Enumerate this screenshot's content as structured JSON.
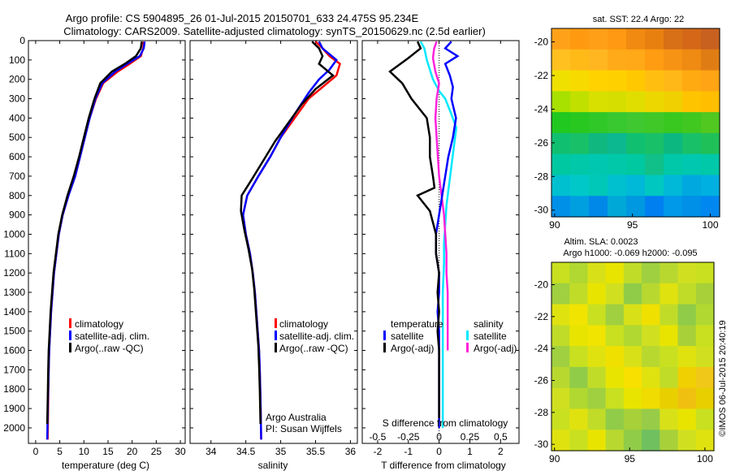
{
  "title_lines": [
    "Argo profile: CS 5904895_26 01-Jul-2015 20150701_633 24.475S 95.234E",
    "Climatology: CARS2009. Satellite-adjusted climatology: synTS_20150629.nc (2.5d earlier)"
  ],
  "credit": "Argo Australia",
  "pi": "PI: Susan Wijffels",
  "stamp": "©IMOS 06-Jul-2015 20:40:19",
  "legend_main": [
    {
      "label": "climatology",
      "color": "#ff0000"
    },
    {
      "label": "satellite-adj. clim.",
      "color": "#0000ff"
    },
    {
      "label": "Argo(..raw -QC)",
      "color": "#000000"
    }
  ],
  "legend_diff_headers": [
    "temperature",
    "salinity"
  ],
  "legend_diff_t": [
    {
      "label": "satellite",
      "color": "#0000ff"
    },
    {
      "label": "Argo(-adj)",
      "color": "#000000"
    }
  ],
  "legend_diff_s": [
    {
      "label": "satellite",
      "color": "#00e8ff"
    },
    {
      "label": "Argo(-adj)",
      "color": "#ff22dd"
    }
  ],
  "colors": {
    "climatology": "#ff0000",
    "satellite": "#0000ff",
    "argo": "#000000",
    "s_satellite": "#00e8ff",
    "s_argo": "#ff22dd"
  },
  "chart_data": [
    {
      "type": "line",
      "xlabel": "temperature (deg C)",
      "ylabel": "",
      "xlim": [
        -1.5,
        31
      ],
      "ylim": [
        2080,
        0
      ],
      "xticks": [
        0,
        5,
        10,
        15,
        20,
        25,
        30
      ],
      "yticks": [
        0,
        100,
        200,
        300,
        400,
        500,
        600,
        700,
        800,
        900,
        1000,
        1100,
        1200,
        1300,
        1400,
        1500,
        1600,
        1700,
        1800,
        1900,
        2000
      ],
      "series": [
        {
          "name": "climatology",
          "x": [
            22.4,
            22.3,
            21.8,
            19.5,
            17.0,
            14.0,
            12.5,
            11.2,
            10.2,
            9.2,
            8.2,
            6.8,
            5.6,
            4.8,
            4.3,
            3.8,
            3.5,
            3.2,
            3.0,
            2.8,
            2.7,
            2.6,
            2.5
          ],
          "y": [
            5,
            40,
            80,
            120,
            160,
            220,
            300,
            400,
            500,
            600,
            700,
            800,
            900,
            1000,
            1100,
            1200,
            1300,
            1400,
            1500,
            1600,
            1700,
            1850,
            2060
          ]
        },
        {
          "name": "satellite-adj. clim.",
          "x": [
            22.6,
            22.4,
            21.6,
            19.0,
            16.5,
            13.8,
            12.4,
            11.2,
            10.2,
            9.2,
            8.2,
            6.8,
            5.6,
            4.8,
            4.3,
            3.8,
            3.5,
            3.2,
            3.0,
            2.8,
            2.7,
            2.55,
            2.4
          ],
          "y": [
            5,
            40,
            80,
            120,
            160,
            220,
            300,
            400,
            500,
            600,
            700,
            800,
            900,
            1000,
            1100,
            1200,
            1300,
            1400,
            1500,
            1600,
            1700,
            1850,
            2060
          ]
        },
        {
          "name": "Argo(..raw -QC)",
          "x": [
            22.0,
            21.8,
            20.8,
            18.5,
            15.8,
            13.4,
            12.2,
            11.0,
            10.0,
            9.0,
            7.9,
            6.6,
            5.5,
            4.7,
            4.2,
            3.7,
            3.4,
            3.1,
            2.9,
            2.7,
            2.6,
            2.5,
            2.4
          ],
          "y": [
            5,
            40,
            80,
            120,
            160,
            220,
            300,
            400,
            500,
            600,
            700,
            800,
            900,
            1000,
            1100,
            1200,
            1300,
            1400,
            1500,
            1600,
            1700,
            1850,
            1980
          ]
        }
      ]
    },
    {
      "type": "line",
      "xlabel": "salinity",
      "ylabel": "",
      "xlim": [
        33.7,
        36.1
      ],
      "ylim": [
        2080,
        0
      ],
      "xticks": [
        34,
        34.5,
        35,
        35.5,
        36
      ],
      "yticks": [],
      "series": [
        {
          "name": "climatology",
          "x": [
            35.5,
            35.6,
            35.7,
            35.85,
            35.8,
            35.6,
            35.4,
            35.2,
            35.0,
            34.85,
            34.68,
            34.52,
            34.46,
            34.5,
            34.56,
            34.6,
            34.63,
            34.65,
            34.67,
            34.69,
            34.7,
            34.71,
            34.72
          ],
          "y": [
            5,
            40,
            80,
            120,
            180,
            240,
            300,
            400,
            500,
            600,
            700,
            800,
            900,
            1000,
            1100,
            1200,
            1300,
            1400,
            1500,
            1600,
            1700,
            1850,
            2060
          ]
        },
        {
          "name": "satellite-adj. clim.",
          "x": [
            35.55,
            35.6,
            35.8,
            35.7,
            35.55,
            35.4,
            35.2,
            35.0,
            34.85,
            34.68,
            34.52,
            34.46,
            34.5,
            34.56,
            34.6,
            34.63,
            34.65,
            34.67,
            34.69,
            34.7,
            34.71,
            34.72
          ],
          "y": [
            5,
            40,
            100,
            150,
            200,
            270,
            380,
            500,
            600,
            700,
            800,
            900,
            1000,
            1100,
            1200,
            1300,
            1400,
            1500,
            1600,
            1700,
            1850,
            2060
          ]
        },
        {
          "name": "Argo(..raw -QC)",
          "x": [
            35.45,
            35.55,
            35.6,
            35.55,
            35.75,
            35.5,
            35.3,
            35.1,
            34.92,
            34.75,
            34.58,
            34.44,
            34.43,
            34.48,
            34.54,
            34.59,
            34.62,
            34.64,
            34.66,
            34.68,
            34.69,
            34.7,
            34.71
          ],
          "y": [
            5,
            40,
            80,
            120,
            180,
            250,
            330,
            430,
            520,
            620,
            720,
            800,
            880,
            980,
            1080,
            1180,
            1280,
            1380,
            1480,
            1580,
            1680,
            1800,
            1980
          ]
        }
      ]
    },
    {
      "type": "line",
      "xlabel": "T difference from climatology",
      "ylabel": "",
      "x2label": "S difference from climatology",
      "xlim": [
        -2.5,
        2.6
      ],
      "ylim": [
        2080,
        0
      ],
      "xticks": [
        -2,
        -1,
        0,
        1,
        2
      ],
      "x2ticks": [
        -0.5,
        -0.25,
        0,
        0.25,
        0.5
      ],
      "x2scale": 4,
      "series": [
        {
          "name": "satellite",
          "x": [
            0.4,
            0.2,
            0.6,
            0.2,
            0.35,
            0.45,
            0.4,
            0.55,
            0.45,
            0.3,
            0.2,
            0.1,
            0.0,
            -0.1,
            -0.1,
            0.0,
            0.0,
            -0.05,
            0.0,
            0.0,
            0.0,
            0.0,
            0.0
          ],
          "y": [
            5,
            40,
            80,
            120,
            180,
            240,
            300,
            400,
            500,
            600,
            700,
            800,
            900,
            1000,
            1100,
            1200,
            1300,
            1400,
            1500,
            1600,
            1700,
            1850,
            2000
          ]
        },
        {
          "name": "Argo(-adj)",
          "x": [
            -0.7,
            -0.6,
            -1.0,
            -1.6,
            -1.2,
            -0.9,
            -0.4,
            -0.3,
            -0.3,
            -0.2,
            -0.15,
            -0.7,
            -0.3,
            -0.1,
            -0.1,
            0.0,
            -0.05,
            0.0,
            -0.05,
            0.0,
            0.0,
            0.0
          ],
          "y": [
            5,
            40,
            90,
            160,
            220,
            300,
            400,
            500,
            600,
            700,
            760,
            800,
            880,
            1000,
            1100,
            1200,
            1300,
            1400,
            1500,
            1600,
            1700,
            1950
          ]
        }
      ],
      "s_series": [
        {
          "name": "satellite",
          "x": [
            -0.15,
            -0.12,
            -0.1,
            -0.05,
            0.0,
            0.05,
            0.1,
            0.14,
            0.12,
            0.1,
            0.08,
            0.06,
            0.05,
            0.04,
            0.04,
            0.03,
            0.03,
            0.03,
            0.03,
            0.03,
            0.03
          ],
          "y": [
            5,
            40,
            100,
            200,
            260,
            300,
            380,
            450,
            550,
            650,
            750,
            850,
            950,
            1050,
            1150,
            1300,
            1450,
            1600,
            1750,
            1900,
            2000
          ]
        },
        {
          "name": "Argo(-adj)",
          "x": [
            -0.02,
            -0.04,
            -0.05,
            -0.03,
            0.0,
            -0.02,
            -0.03,
            -0.02,
            -0.01,
            0.0,
            0.02,
            0.04,
            0.05,
            0.06,
            0.06,
            0.07,
            0.07,
            0.07,
            0.07
          ],
          "y": [
            5,
            40,
            90,
            160,
            220,
            300,
            400,
            500,
            600,
            700,
            800,
            900,
            1000,
            1100,
            1200,
            1300,
            1400,
            1500,
            1600
          ]
        }
      ]
    },
    {
      "type": "heatmap",
      "title": "sat. SST: 22.4  Argo: 22",
      "xlim": [
        89.8,
        100.6
      ],
      "ylim": [
        -30.4,
        -19.2
      ],
      "xticks": [
        90,
        95,
        100
      ],
      "yticks": [
        -20,
        -22,
        -24,
        -26,
        -28,
        -30
      ],
      "rows": [
        [
          "#ffa21a",
          "#ff9a10",
          "#ff9f18",
          "#ff9812",
          "#f08a10",
          "#e88010",
          "#d87018",
          "#d46818",
          "#c86020"
        ],
        [
          "#ffc020",
          "#ffba18",
          "#ffb620",
          "#ffaa18",
          "#ffa818",
          "#ff9c12",
          "#f79314",
          "#ef8a12",
          "#e07c14"
        ],
        [
          "#f0e000",
          "#f6da00",
          "#ffd200",
          "#ffd000",
          "#ffc800",
          "#ffbe10",
          "#ffb818",
          "#ffaa10",
          "#ffa414"
        ],
        [
          "#a8e000",
          "#c0e000",
          "#d8e000",
          "#d6de00",
          "#e0de00",
          "#ecd800",
          "#f0d000",
          "#ffc400",
          "#ffbe00"
        ],
        [
          "#20c820",
          "#28c820",
          "#30c828",
          "#38c830",
          "#40c830",
          "#40c828",
          "#38c820",
          "#40c820",
          "#50c820"
        ],
        [
          "#10c070",
          "#18c068",
          "#10b880",
          "#0cb890",
          "#10c070",
          "#18c068",
          "#0cb880",
          "#18c068",
          "#20c058"
        ],
        [
          "#00c8a0",
          "#00c8a8",
          "#00c8b0",
          "#00c8a8",
          "#00c8a0",
          "#10c088",
          "#00c8a8",
          "#00c8b0",
          "#00c8a8"
        ],
        [
          "#00c0d0",
          "#00c8c8",
          "#00c8b8",
          "#00c0d0",
          "#00b8d8",
          "#00c8c0",
          "#00b8d8",
          "#00a8e0",
          "#00b0e0"
        ],
        [
          "#0090e8",
          "#00a0e0",
          "#0088e8",
          "#00a8d8",
          "#0098e0",
          "#0080f0",
          "#0098e8",
          "#0090e8",
          "#0088f0"
        ]
      ]
    },
    {
      "type": "heatmap",
      "title_lines": [
        "Altim. SLA: 0.0023",
        "Argo h1000: -0.069 h2000: -0.095"
      ],
      "xlim": [
        89.8,
        100.6
      ],
      "ylim": [
        -30.4,
        -18.6
      ],
      "xticks": [
        90,
        95,
        100
      ],
      "yticks": [
        -20,
        -22,
        -24,
        -26,
        -28,
        -30
      ],
      "rows": [
        [
          "#c8e020",
          "#b0d830",
          "#d8e018",
          "#e8e400",
          "#c0dc28",
          "#9ed040",
          "#b8d830",
          "#d0e020",
          "#c8e020"
        ],
        [
          "#a0d040",
          "#c0dc28",
          "#e8e400",
          "#d0e020",
          "#90cc48",
          "#b8d830",
          "#e0e210",
          "#c0dc28",
          "#a8d038"
        ],
        [
          "#e0e210",
          "#f0e400",
          "#c8e020",
          "#a0d040",
          "#d8e018",
          "#f0e000",
          "#c0dc28",
          "#90cc48",
          "#b0d830"
        ],
        [
          "#c0dc28",
          "#e8e400",
          "#f0e400",
          "#c8e020",
          "#b0d830",
          "#d0e020",
          "#e8e400",
          "#a8d038",
          "#c8e020"
        ],
        [
          "#a0d040",
          "#c8e020",
          "#e0e210",
          "#f0e000",
          "#d8e018",
          "#b8d830",
          "#c8e020",
          "#e0e210",
          "#d0e020"
        ],
        [
          "#b8d830",
          "#90cc48",
          "#c0dc28",
          "#e8e400",
          "#f8e000",
          "#e0e210",
          "#c0dc28",
          "#f0d000",
          "#f0c818"
        ],
        [
          "#d0e020",
          "#b0d830",
          "#a0d040",
          "#c8e020",
          "#e8e400",
          "#f0dc00",
          "#e8d000",
          "#f0c010",
          "#e8d000"
        ],
        [
          "#c8e020",
          "#e0e210",
          "#c0dc28",
          "#90cc48",
          "#a8d038",
          "#98cc48",
          "#d8e018",
          "#e8e400",
          "#c8e020"
        ],
        [
          "#e0e210",
          "#c8e020",
          "#e8e400",
          "#b8d830",
          "#90cc48",
          "#70c060",
          "#a8d038",
          "#d0e020",
          "#e0e210"
        ]
      ]
    }
  ]
}
